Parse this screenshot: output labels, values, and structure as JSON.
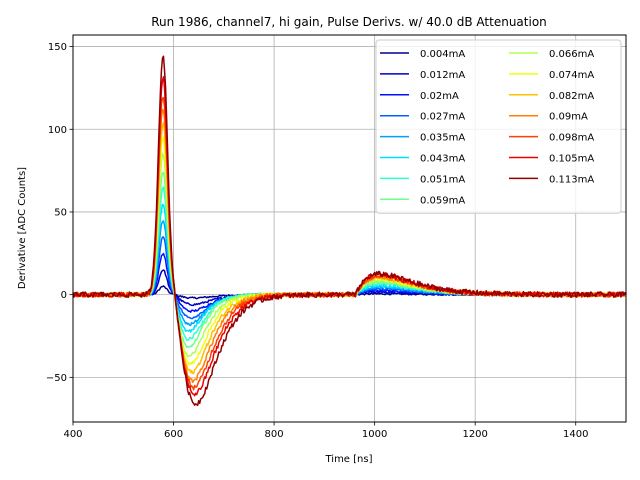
{
  "chart_data": {
    "type": "line",
    "title": "Run 1986, channel7, hi gain, Pulse Derivs. w/ 40.0 dB Attenuation",
    "xlabel": "Time [ns]",
    "ylabel": "Derivative [ADC Counts]",
    "xlim": [
      400,
      1500
    ],
    "ylim": [
      -77,
      157
    ],
    "xticks": [
      400,
      600,
      800,
      1000,
      1200,
      1400
    ],
    "yticks": [
      -50,
      0,
      50,
      100,
      150
    ],
    "grid": true,
    "legend_position": "top-right",
    "legend_columns": 2,
    "series": [
      {
        "name": "0.004mA",
        "color": "#00008f",
        "peak": 5,
        "trough": -2,
        "trough_time": 640,
        "bump": 0.5
      },
      {
        "name": "0.012mA",
        "color": "#0000c8",
        "peak": 15,
        "trough": -6,
        "trough_time": 638,
        "bump": 1.5
      },
      {
        "name": "0.02mA",
        "color": "#0010ff",
        "peak": 25,
        "trough": -10,
        "trough_time": 636,
        "bump": 2.5
      },
      {
        "name": "0.027mA",
        "color": "#0060ff",
        "peak": 35,
        "trough": -14,
        "trough_time": 634,
        "bump": 3.5
      },
      {
        "name": "0.035mA",
        "color": "#00a0ff",
        "peak": 45,
        "trough": -18,
        "trough_time": 632,
        "bump": 4.5
      },
      {
        "name": "0.043mA",
        "color": "#00e0ff",
        "peak": 55,
        "trough": -22,
        "trough_time": 630,
        "bump": 5.5
      },
      {
        "name": "0.051mA",
        "color": "#30ffcf",
        "peak": 65,
        "trough": -27,
        "trough_time": 630,
        "bump": 6.5
      },
      {
        "name": "0.059mA",
        "color": "#70ff8f",
        "peak": 75,
        "trough": -32,
        "trough_time": 630,
        "bump": 7.5
      },
      {
        "name": "0.066mA",
        "color": "#afff50",
        "peak": 85,
        "trough": -37,
        "trough_time": 632,
        "bump": 8.5
      },
      {
        "name": "0.074mA",
        "color": "#efff10",
        "peak": 95,
        "trough": -42,
        "trough_time": 634,
        "bump": 9.3
      },
      {
        "name": "0.082mA",
        "color": "#ffc000",
        "peak": 104,
        "trough": -47,
        "trough_time": 636,
        "bump": 10
      },
      {
        "name": "0.09mA",
        "color": "#ff8000",
        "peak": 113,
        "trough": -52,
        "trough_time": 638,
        "bump": 10.7
      },
      {
        "name": "0.098mA",
        "color": "#ff4000",
        "peak": 121,
        "trough": -56,
        "trough_time": 640,
        "bump": 11.3
      },
      {
        "name": "0.105mA",
        "color": "#ef0000",
        "peak": 131,
        "trough": -60,
        "trough_time": 642,
        "bump": 12
      },
      {
        "name": "0.113mA",
        "color": "#8f0000",
        "peak": 145,
        "trough": -66,
        "trough_time": 644,
        "bump": 12.5
      }
    ]
  }
}
